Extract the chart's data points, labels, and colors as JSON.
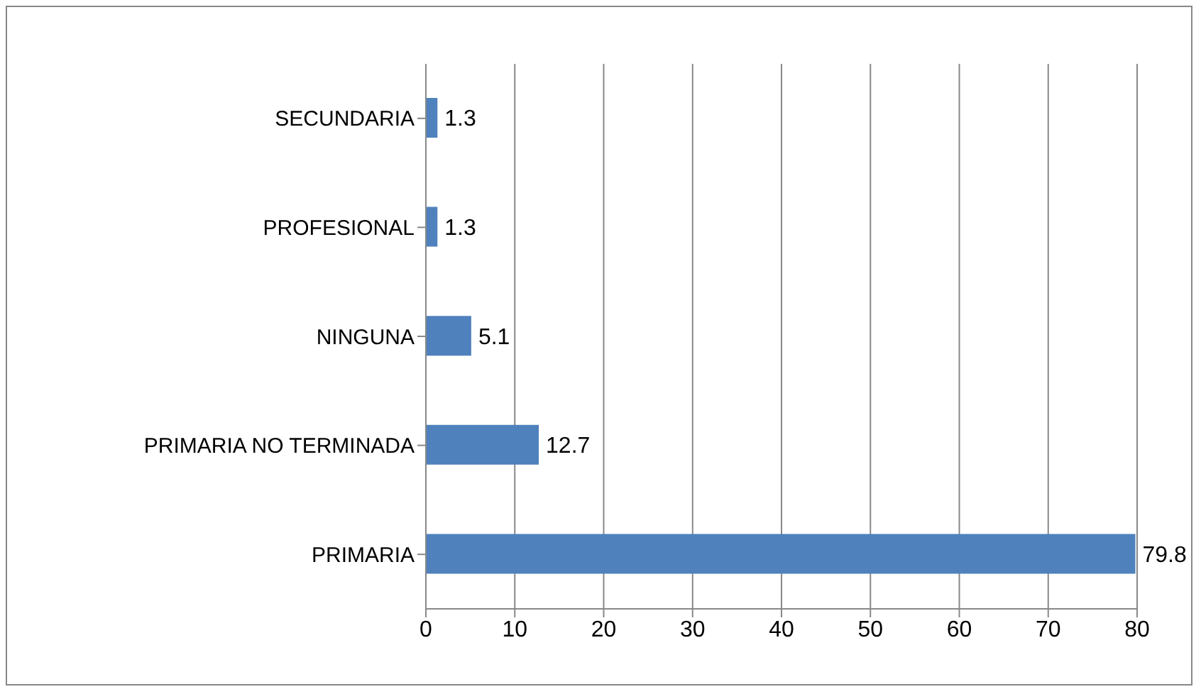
{
  "chart_data": {
    "type": "bar",
    "orientation": "horizontal",
    "categories": [
      "SECUNDARIA",
      "PROFESIONAL",
      "NINGUNA",
      "PRIMARIA NO TERMINADA",
      "PRIMARIA"
    ],
    "values": [
      1.3,
      1.3,
      5.1,
      12.7,
      79.8
    ],
    "color": "#4f81bd",
    "xlim": [
      0,
      80
    ],
    "xticks": [
      0,
      10,
      20,
      30,
      40,
      50,
      60,
      70,
      80
    ],
    "grid": "x",
    "data_labels": true
  }
}
